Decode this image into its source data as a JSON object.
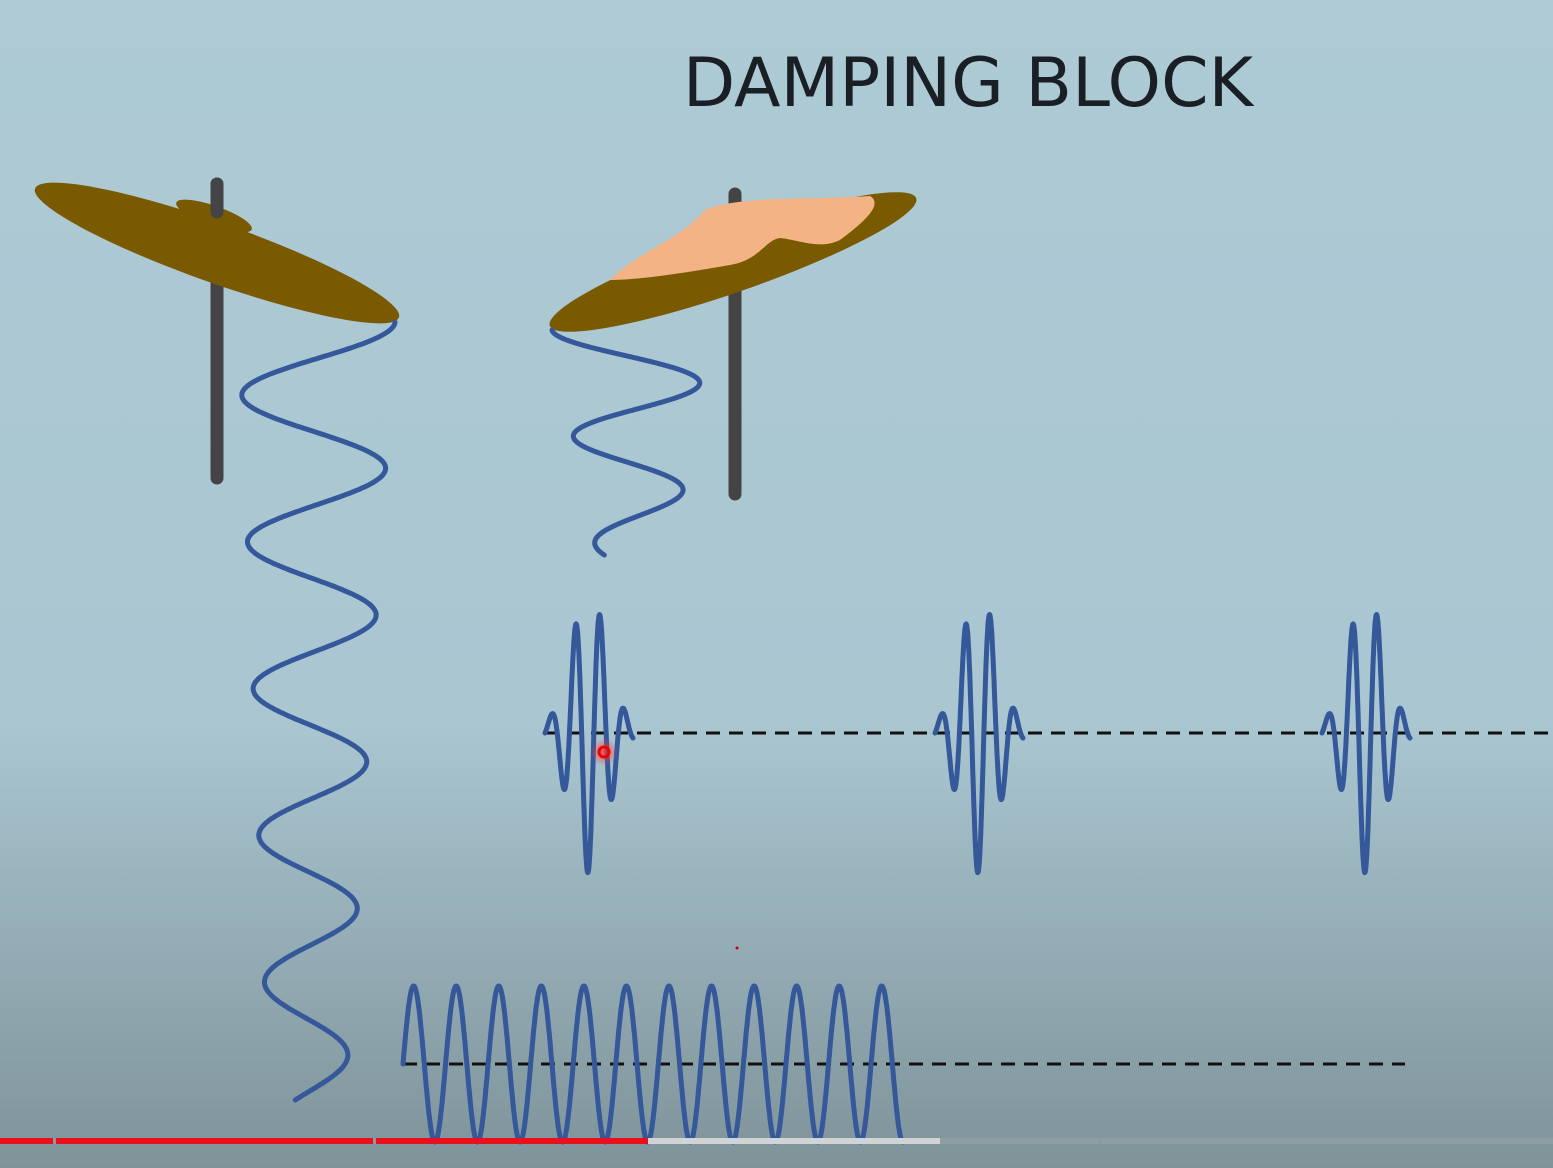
{
  "title": "DAMPING BLOCK"
}
